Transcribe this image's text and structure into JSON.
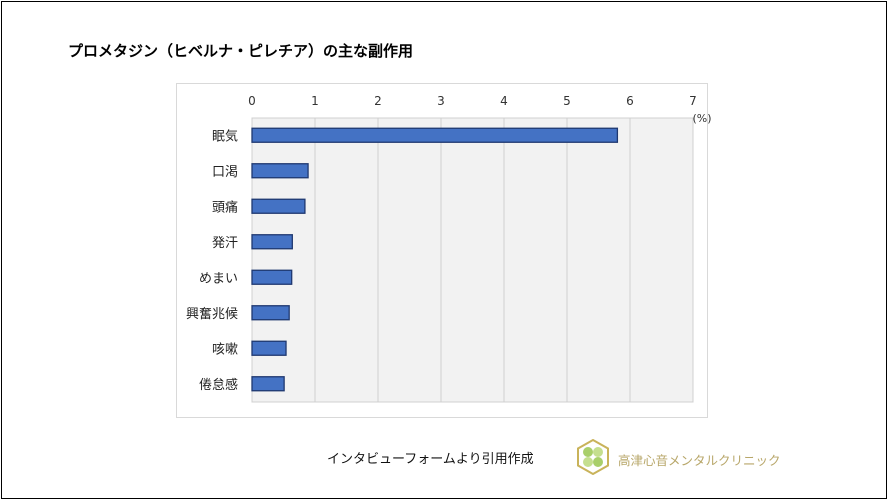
{
  "title": "プロメタジン（ヒベルナ・ピレチア）の主な副作用",
  "chart_data": {
    "type": "bar",
    "orientation": "horizontal",
    "title": "プロメタジン（ヒベルナ・ピレチア）の主な副作用",
    "categories": [
      "眠気",
      "口渇",
      "頭痛",
      "発汗",
      "めまい",
      "興奮兆候",
      "咳嗽",
      "倦怠感"
    ],
    "values": [
      5.8,
      0.89,
      0.84,
      0.64,
      0.63,
      0.59,
      0.54,
      0.51
    ],
    "xlim": [
      0,
      7
    ],
    "x_ticks": [
      "0",
      "1",
      "2",
      "3",
      "4",
      "5",
      "6",
      "7"
    ],
    "x_axis_position": "top",
    "unit_label": "(%)",
    "grid": true,
    "bar_color": "#4472c4",
    "bar_edge_color": "#1f3870",
    "plot_background": "#f2f2f2"
  },
  "footer": {
    "source": "インタビューフォームより引用作成",
    "clinic_name": "高津心音メンタルクリニック"
  }
}
